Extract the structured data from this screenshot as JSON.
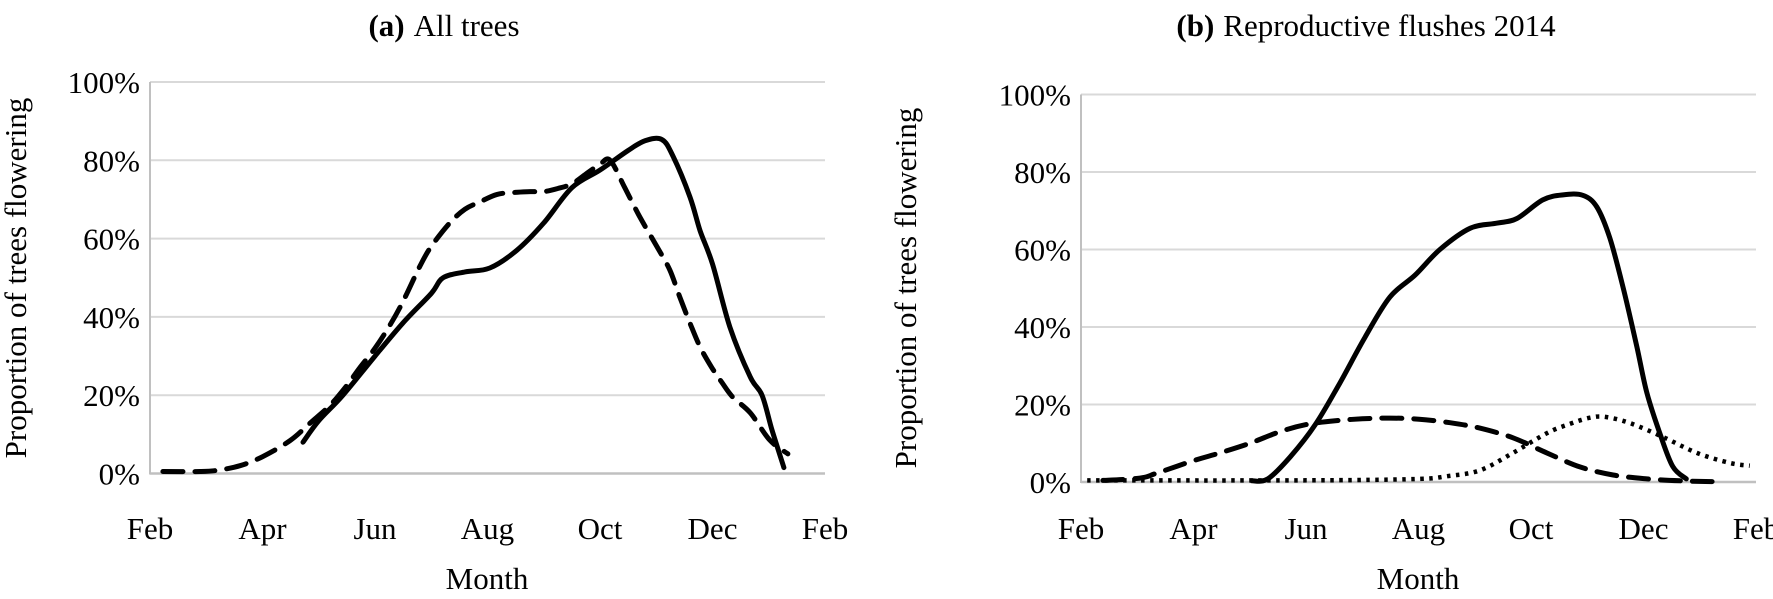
{
  "figure": {
    "background": "#ffffff",
    "line_color": "#000000",
    "grid_color": "#d9d9d9",
    "axis_color": "#c0c0c0",
    "text_color": "#000000"
  },
  "chart_data": [
    {
      "type": "line",
      "panel_label": "(a)",
      "title": "All trees",
      "xlabel": "Month",
      "ylabel": "Proportion of trees flowering",
      "x_tick_labels": [
        "Feb",
        "Apr",
        "Jun",
        "Aug",
        "Oct",
        "Dec",
        "Feb"
      ],
      "y_tick_labels": [
        "0%",
        "20%",
        "40%",
        "60%",
        "80%",
        "100%"
      ],
      "ylim": [
        0,
        100
      ],
      "x_unit": "month index, 0 = Feb through 12 = following Feb",
      "grid": "horizontal",
      "legend": "none",
      "series": [
        {
          "name": "solid curve",
          "style": "solid",
          "points": [
            [
              2.72,
              8
            ],
            [
              3.0,
              13.5
            ],
            [
              3.43,
              20
            ],
            [
              4.0,
              30
            ],
            [
              4.5,
              38.5
            ],
            [
              5.0,
              46
            ],
            [
              5.21,
              50
            ],
            [
              5.6,
              51.5
            ],
            [
              6.04,
              52.5
            ],
            [
              6.52,
              57
            ],
            [
              7.0,
              64
            ],
            [
              7.5,
              73
            ],
            [
              8.0,
              77.5
            ],
            [
              8.5,
              82.5
            ],
            [
              8.8,
              85
            ],
            [
              9.1,
              85.3
            ],
            [
              9.3,
              81
            ],
            [
              9.6,
              70.6
            ],
            [
              9.78,
              62
            ],
            [
              10.0,
              53.5
            ],
            [
              10.31,
              37.4
            ],
            [
              10.67,
              24.7
            ],
            [
              10.88,
              20
            ],
            [
              11.06,
              11
            ],
            [
              11.27,
              1.5
            ]
          ]
        },
        {
          "name": "dashed curve",
          "style": "dashed",
          "points": [
            [
              0.23,
              0.5
            ],
            [
              0.89,
              0.5
            ],
            [
              1.19,
              0.8
            ],
            [
              1.6,
              2
            ],
            [
              2.0,
              4.3
            ],
            [
              2.49,
              8.4
            ],
            [
              2.84,
              12.8
            ],
            [
              3.2,
              17.4
            ],
            [
              3.5,
              22.5
            ],
            [
              3.73,
              27
            ],
            [
              4.0,
              32
            ],
            [
              4.27,
              38
            ],
            [
              4.5,
              44
            ],
            [
              4.8,
              53
            ],
            [
              5.0,
              58
            ],
            [
              5.33,
              64
            ],
            [
              5.6,
              67.5
            ],
            [
              5.87,
              69.4
            ],
            [
              6.17,
              71.3
            ],
            [
              6.49,
              71.8
            ],
            [
              6.76,
              72
            ],
            [
              7.0,
              72
            ],
            [
              7.25,
              72.8
            ],
            [
              7.5,
              74
            ],
            [
              7.75,
              76.5
            ],
            [
              8.0,
              79
            ],
            [
              8.18,
              80
            ],
            [
              8.44,
              73
            ],
            [
              8.71,
              65.5
            ],
            [
              9.01,
              58
            ],
            [
              9.24,
              52
            ],
            [
              9.42,
              45
            ],
            [
              9.6,
              38.4
            ],
            [
              9.78,
              32.3
            ],
            [
              9.99,
              27
            ],
            [
              10.17,
              23.2
            ],
            [
              10.36,
              19.5
            ],
            [
              10.67,
              15.5
            ],
            [
              11.02,
              8.5
            ],
            [
              11.34,
              5
            ]
          ]
        }
      ]
    },
    {
      "type": "line",
      "panel_label": "(b)",
      "title": "Reproductive flushes 2014",
      "xlabel": "Month",
      "ylabel": "Proportion of trees flowering",
      "x_tick_labels": [
        "Feb",
        "Apr",
        "Jun",
        "Aug",
        "Oct",
        "Dec",
        "Feb"
      ],
      "y_tick_labels": [
        "0%",
        "20%",
        "40%",
        "60%",
        "80%",
        "100%"
      ],
      "ylim": [
        0,
        100
      ],
      "x_unit": "month index, 0 = Feb through 12 = following Feb",
      "grid": "horizontal",
      "legend": "none",
      "series": [
        {
          "name": "solid curve",
          "style": "solid",
          "points": [
            [
              3.04,
              0.3
            ],
            [
              3.32,
              0.8
            ],
            [
              3.72,
              6.5
            ],
            [
              4.16,
              14.7
            ],
            [
              4.6,
              25.5
            ],
            [
              5.05,
              37.4
            ],
            [
              5.49,
              47.7
            ],
            [
              5.94,
              53.4
            ],
            [
              6.38,
              60
            ],
            [
              6.92,
              65.5
            ],
            [
              7.4,
              66.8
            ],
            [
              7.75,
              68
            ],
            [
              8.21,
              72.8
            ],
            [
              8.57,
              74.1
            ],
            [
              8.92,
              74
            ],
            [
              9.17,
              71
            ],
            [
              9.4,
              63
            ],
            [
              9.64,
              50
            ],
            [
              9.88,
              35
            ],
            [
              10.06,
              23
            ],
            [
              10.29,
              12.6
            ],
            [
              10.52,
              4
            ],
            [
              10.76,
              0.8
            ]
          ]
        },
        {
          "name": "dashed curve",
          "style": "dashed",
          "points": [
            [
              0.39,
              0.4
            ],
            [
              1.05,
              1
            ],
            [
              1.35,
              2.3
            ],
            [
              2.0,
              5.5
            ],
            [
              2.47,
              7.5
            ],
            [
              3.0,
              10
            ],
            [
              3.54,
              13
            ],
            [
              4.0,
              14.8
            ],
            [
              4.52,
              15.8
            ],
            [
              5.0,
              16.3
            ],
            [
              5.49,
              16.5
            ],
            [
              6.01,
              16.2
            ],
            [
              6.56,
              15.3
            ],
            [
              7.09,
              13.9
            ],
            [
              7.68,
              11.4
            ],
            [
              8.28,
              7.5
            ],
            [
              8.87,
              3.9
            ],
            [
              9.46,
              1.8
            ],
            [
              10.06,
              0.8
            ],
            [
              10.65,
              0.3
            ],
            [
              11.22,
              0.1
            ]
          ]
        },
        {
          "name": "dotted curve",
          "style": "dotted",
          "points": [
            [
              0.11,
              0.4
            ],
            [
              1.23,
              0.4
            ],
            [
              3.0,
              0.4
            ],
            [
              4.78,
              0.5
            ],
            [
              6.03,
              0.8
            ],
            [
              6.51,
              1.5
            ],
            [
              7.09,
              3
            ],
            [
              7.68,
              7.5
            ],
            [
              8.28,
              12.6
            ],
            [
              8.69,
              15
            ],
            [
              9.05,
              16.6
            ],
            [
              9.32,
              16.8
            ],
            [
              9.76,
              15.2
            ],
            [
              10.35,
              11.6
            ],
            [
              10.95,
              7.5
            ],
            [
              11.54,
              4.9
            ],
            [
              11.89,
              4.2
            ]
          ]
        }
      ]
    }
  ]
}
